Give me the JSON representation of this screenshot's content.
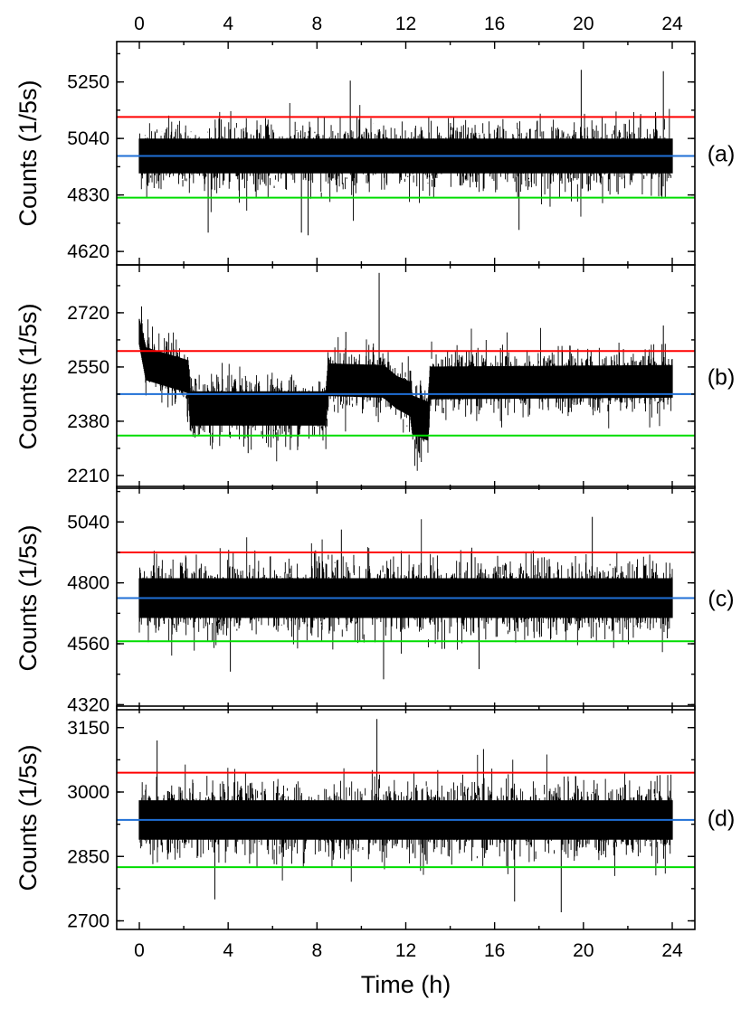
{
  "chart_data": {
    "type": "line",
    "shared_x": {
      "label": "Time (h)",
      "range": [
        -1,
        25
      ],
      "ticks": [
        0,
        4,
        8,
        12,
        16,
        20,
        24
      ],
      "minor_ticks": [
        2,
        6,
        10,
        14,
        18,
        22
      ],
      "top_axis_labels": true,
      "bottom_axis_labels": true
    },
    "line_colors": {
      "trace": "#000000",
      "upper": "#ff0000",
      "mean": "#1f6fd6",
      "lower": "#00dd00"
    },
    "panels": [
      {
        "tag": "(a)",
        "ylabel": "Counts (1/5s)",
        "ylim": [
          4570,
          5400
        ],
        "yticks": [
          4620,
          4830,
          5040,
          5250
        ],
        "upper_line": 5120,
        "mean_line": 4975,
        "lower_line": 4820,
        "trace_profile": [
          [
            0,
            4975,
            48
          ],
          [
            24,
            4975,
            48
          ]
        ],
        "spikes": [
          [
            19.9,
            5295
          ],
          [
            23.6,
            5290
          ],
          [
            9.5,
            5255
          ],
          [
            7.3,
            4690
          ],
          [
            17.1,
            4700
          ],
          [
            3.1,
            4690
          ],
          [
            7.6,
            4680
          ]
        ]
      },
      {
        "tag": "(b)",
        "ylabel": "Counts (1/5s)",
        "ylim": [
          2170,
          2870
        ],
        "yticks": [
          2210,
          2380,
          2550,
          2720
        ],
        "upper_line": 2600,
        "mean_line": 2465,
        "lower_line": 2335,
        "trace_profile": [
          [
            0,
            2660,
            30
          ],
          [
            0.3,
            2560,
            38
          ],
          [
            2.2,
            2520,
            38
          ],
          [
            2.3,
            2420,
            40
          ],
          [
            8.4,
            2420,
            40
          ],
          [
            8.5,
            2510,
            38
          ],
          [
            11.0,
            2505,
            38
          ],
          [
            11.6,
            2470,
            38
          ],
          [
            12.2,
            2450,
            40
          ],
          [
            12.3,
            2400,
            45
          ],
          [
            13.0,
            2380,
            45
          ],
          [
            13.1,
            2500,
            38
          ],
          [
            24,
            2505,
            38
          ]
        ],
        "spikes": [
          [
            10.8,
            2845
          ],
          [
            0.1,
            2740
          ],
          [
            23.6,
            2680
          ],
          [
            9.3,
            2660
          ],
          [
            12.6,
            2280
          ],
          [
            4.9,
            2280
          ],
          [
            6.8,
            2290
          ]
        ]
      },
      {
        "tag": "(c)",
        "ylabel": "Counts (1/5s)",
        "ylim": [
          4300,
          5180
        ],
        "yticks": [
          4320,
          4560,
          4800,
          5040
        ],
        "upper_line": 4920,
        "mean_line": 4740,
        "lower_line": 4570,
        "trace_profile": [
          [
            0,
            4740,
            58
          ],
          [
            24,
            4740,
            58
          ]
        ],
        "spikes": [
          [
            20.4,
            5060
          ],
          [
            9.1,
            5010
          ],
          [
            11.0,
            4420
          ],
          [
            4.1,
            4450
          ],
          [
            15.3,
            4460
          ]
        ]
      },
      {
        "tag": "(d)",
        "ylabel": "Counts (1/5s)",
        "ylim": [
          2680,
          3200
        ],
        "yticks": [
          2700,
          2850,
          3000,
          3150
        ],
        "upper_line": 3045,
        "mean_line": 2935,
        "lower_line": 2825,
        "trace_profile": [
          [
            0,
            2935,
            34
          ],
          [
            24,
            2935,
            34
          ]
        ],
        "spikes": [
          [
            10.7,
            3170
          ],
          [
            0.8,
            3120
          ],
          [
            15.5,
            3100
          ],
          [
            19.0,
            2720
          ],
          [
            3.4,
            2750
          ],
          [
            16.9,
            2745
          ]
        ]
      }
    ]
  }
}
